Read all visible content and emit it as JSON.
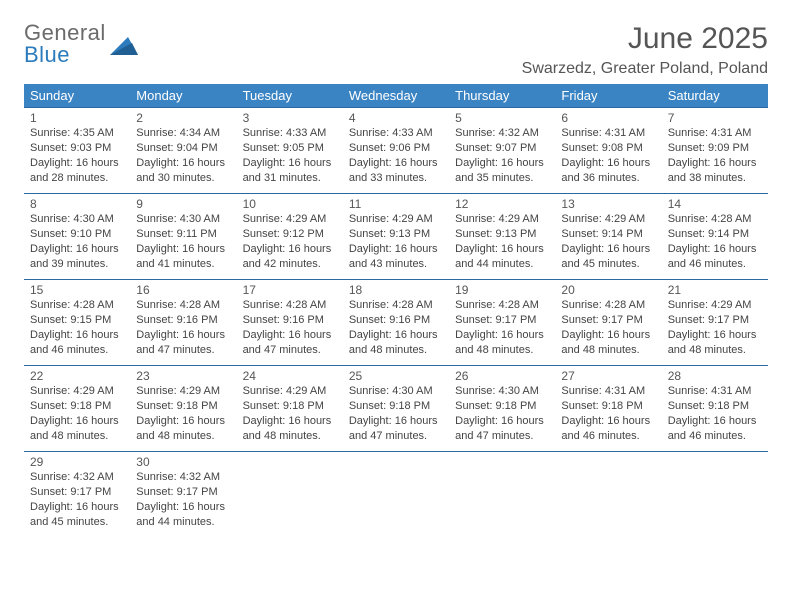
{
  "logo": {
    "word1": "General",
    "word2": "Blue",
    "triangle_color": "#2b7bbd"
  },
  "title": "June 2025",
  "location": "Swarzedz, Greater Poland, Poland",
  "colors": {
    "header_bg": "#3b84c4",
    "header_text": "#ffffff",
    "row_border": "#2b6aa0",
    "body_text": "#444444",
    "title_text": "#555555"
  },
  "fonts": {
    "title_size": 30,
    "location_size": 16,
    "day_header_size": 13,
    "daynum_size": 12,
    "cell_size": 11
  },
  "day_headers": [
    "Sunday",
    "Monday",
    "Tuesday",
    "Wednesday",
    "Thursday",
    "Friday",
    "Saturday"
  ],
  "weeks": [
    [
      {
        "n": "1",
        "sr": "4:35 AM",
        "ss": "9:03 PM",
        "dl": "16 hours and 28 minutes."
      },
      {
        "n": "2",
        "sr": "4:34 AM",
        "ss": "9:04 PM",
        "dl": "16 hours and 30 minutes."
      },
      {
        "n": "3",
        "sr": "4:33 AM",
        "ss": "9:05 PM",
        "dl": "16 hours and 31 minutes."
      },
      {
        "n": "4",
        "sr": "4:33 AM",
        "ss": "9:06 PM",
        "dl": "16 hours and 33 minutes."
      },
      {
        "n": "5",
        "sr": "4:32 AM",
        "ss": "9:07 PM",
        "dl": "16 hours and 35 minutes."
      },
      {
        "n": "6",
        "sr": "4:31 AM",
        "ss": "9:08 PM",
        "dl": "16 hours and 36 minutes."
      },
      {
        "n": "7",
        "sr": "4:31 AM",
        "ss": "9:09 PM",
        "dl": "16 hours and 38 minutes."
      }
    ],
    [
      {
        "n": "8",
        "sr": "4:30 AM",
        "ss": "9:10 PM",
        "dl": "16 hours and 39 minutes."
      },
      {
        "n": "9",
        "sr": "4:30 AM",
        "ss": "9:11 PM",
        "dl": "16 hours and 41 minutes."
      },
      {
        "n": "10",
        "sr": "4:29 AM",
        "ss": "9:12 PM",
        "dl": "16 hours and 42 minutes."
      },
      {
        "n": "11",
        "sr": "4:29 AM",
        "ss": "9:13 PM",
        "dl": "16 hours and 43 minutes."
      },
      {
        "n": "12",
        "sr": "4:29 AM",
        "ss": "9:13 PM",
        "dl": "16 hours and 44 minutes."
      },
      {
        "n": "13",
        "sr": "4:29 AM",
        "ss": "9:14 PM",
        "dl": "16 hours and 45 minutes."
      },
      {
        "n": "14",
        "sr": "4:28 AM",
        "ss": "9:14 PM",
        "dl": "16 hours and 46 minutes."
      }
    ],
    [
      {
        "n": "15",
        "sr": "4:28 AM",
        "ss": "9:15 PM",
        "dl": "16 hours and 46 minutes."
      },
      {
        "n": "16",
        "sr": "4:28 AM",
        "ss": "9:16 PM",
        "dl": "16 hours and 47 minutes."
      },
      {
        "n": "17",
        "sr": "4:28 AM",
        "ss": "9:16 PM",
        "dl": "16 hours and 47 minutes."
      },
      {
        "n": "18",
        "sr": "4:28 AM",
        "ss": "9:16 PM",
        "dl": "16 hours and 48 minutes."
      },
      {
        "n": "19",
        "sr": "4:28 AM",
        "ss": "9:17 PM",
        "dl": "16 hours and 48 minutes."
      },
      {
        "n": "20",
        "sr": "4:28 AM",
        "ss": "9:17 PM",
        "dl": "16 hours and 48 minutes."
      },
      {
        "n": "21",
        "sr": "4:29 AM",
        "ss": "9:17 PM",
        "dl": "16 hours and 48 minutes."
      }
    ],
    [
      {
        "n": "22",
        "sr": "4:29 AM",
        "ss": "9:18 PM",
        "dl": "16 hours and 48 minutes."
      },
      {
        "n": "23",
        "sr": "4:29 AM",
        "ss": "9:18 PM",
        "dl": "16 hours and 48 minutes."
      },
      {
        "n": "24",
        "sr": "4:29 AM",
        "ss": "9:18 PM",
        "dl": "16 hours and 48 minutes."
      },
      {
        "n": "25",
        "sr": "4:30 AM",
        "ss": "9:18 PM",
        "dl": "16 hours and 47 minutes."
      },
      {
        "n": "26",
        "sr": "4:30 AM",
        "ss": "9:18 PM",
        "dl": "16 hours and 47 minutes."
      },
      {
        "n": "27",
        "sr": "4:31 AM",
        "ss": "9:18 PM",
        "dl": "16 hours and 46 minutes."
      },
      {
        "n": "28",
        "sr": "4:31 AM",
        "ss": "9:18 PM",
        "dl": "16 hours and 46 minutes."
      }
    ],
    [
      {
        "n": "29",
        "sr": "4:32 AM",
        "ss": "9:17 PM",
        "dl": "16 hours and 45 minutes."
      },
      {
        "n": "30",
        "sr": "4:32 AM",
        "ss": "9:17 PM",
        "dl": "16 hours and 44 minutes."
      },
      null,
      null,
      null,
      null,
      null
    ]
  ],
  "labels": {
    "sunrise": "Sunrise:",
    "sunset": "Sunset:",
    "daylight": "Daylight:"
  }
}
